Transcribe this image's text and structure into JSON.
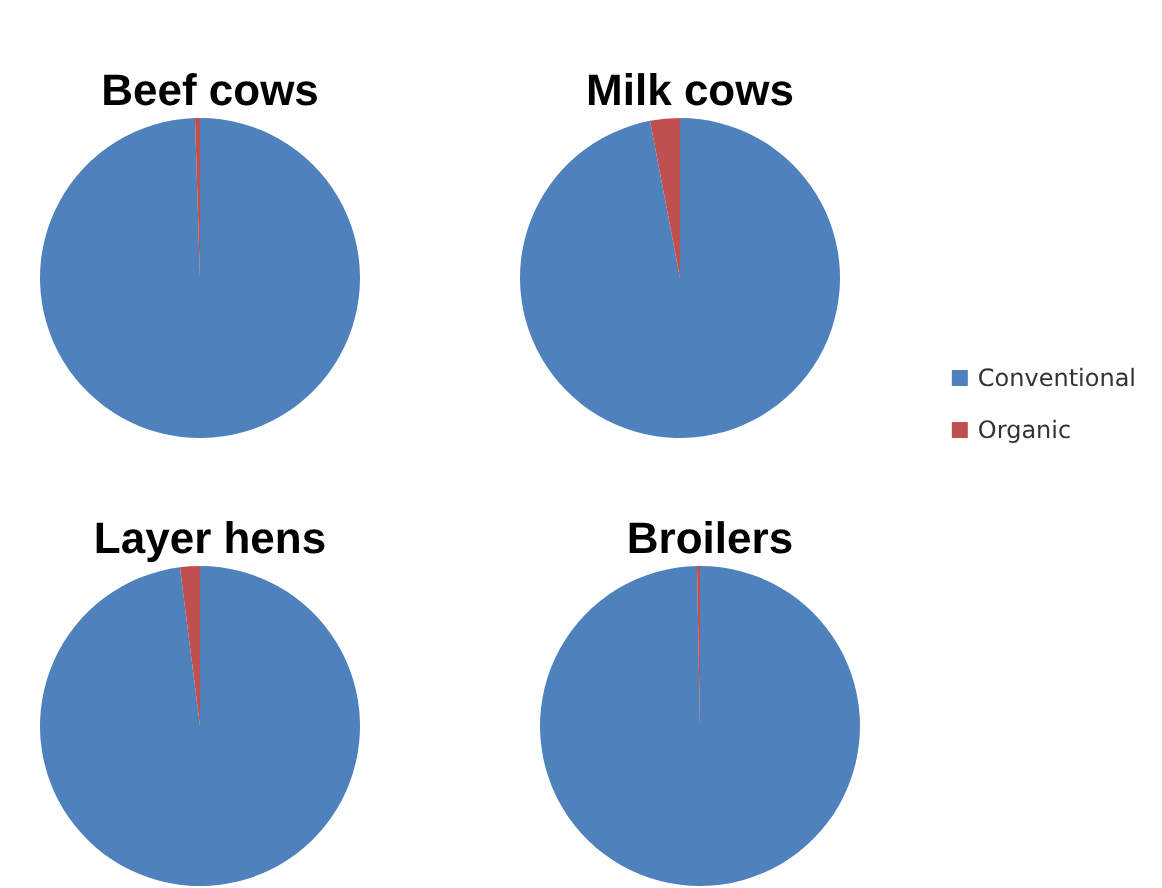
{
  "chart_data": {
    "type": "pie",
    "categories": [
      "Conventional",
      "Organic"
    ],
    "colors": [
      "#4f81bd",
      "#c0504d"
    ],
    "legend": "right",
    "series": [
      {
        "name": "Beef cows",
        "values": [
          99.5,
          0.5
        ]
      },
      {
        "name": "Milk cows",
        "values": [
          97,
          3
        ]
      },
      {
        "name": "Layer hens",
        "values": [
          98,
          2
        ]
      },
      {
        "name": "Broilers",
        "values": [
          99.7,
          0.3
        ]
      }
    ]
  }
}
